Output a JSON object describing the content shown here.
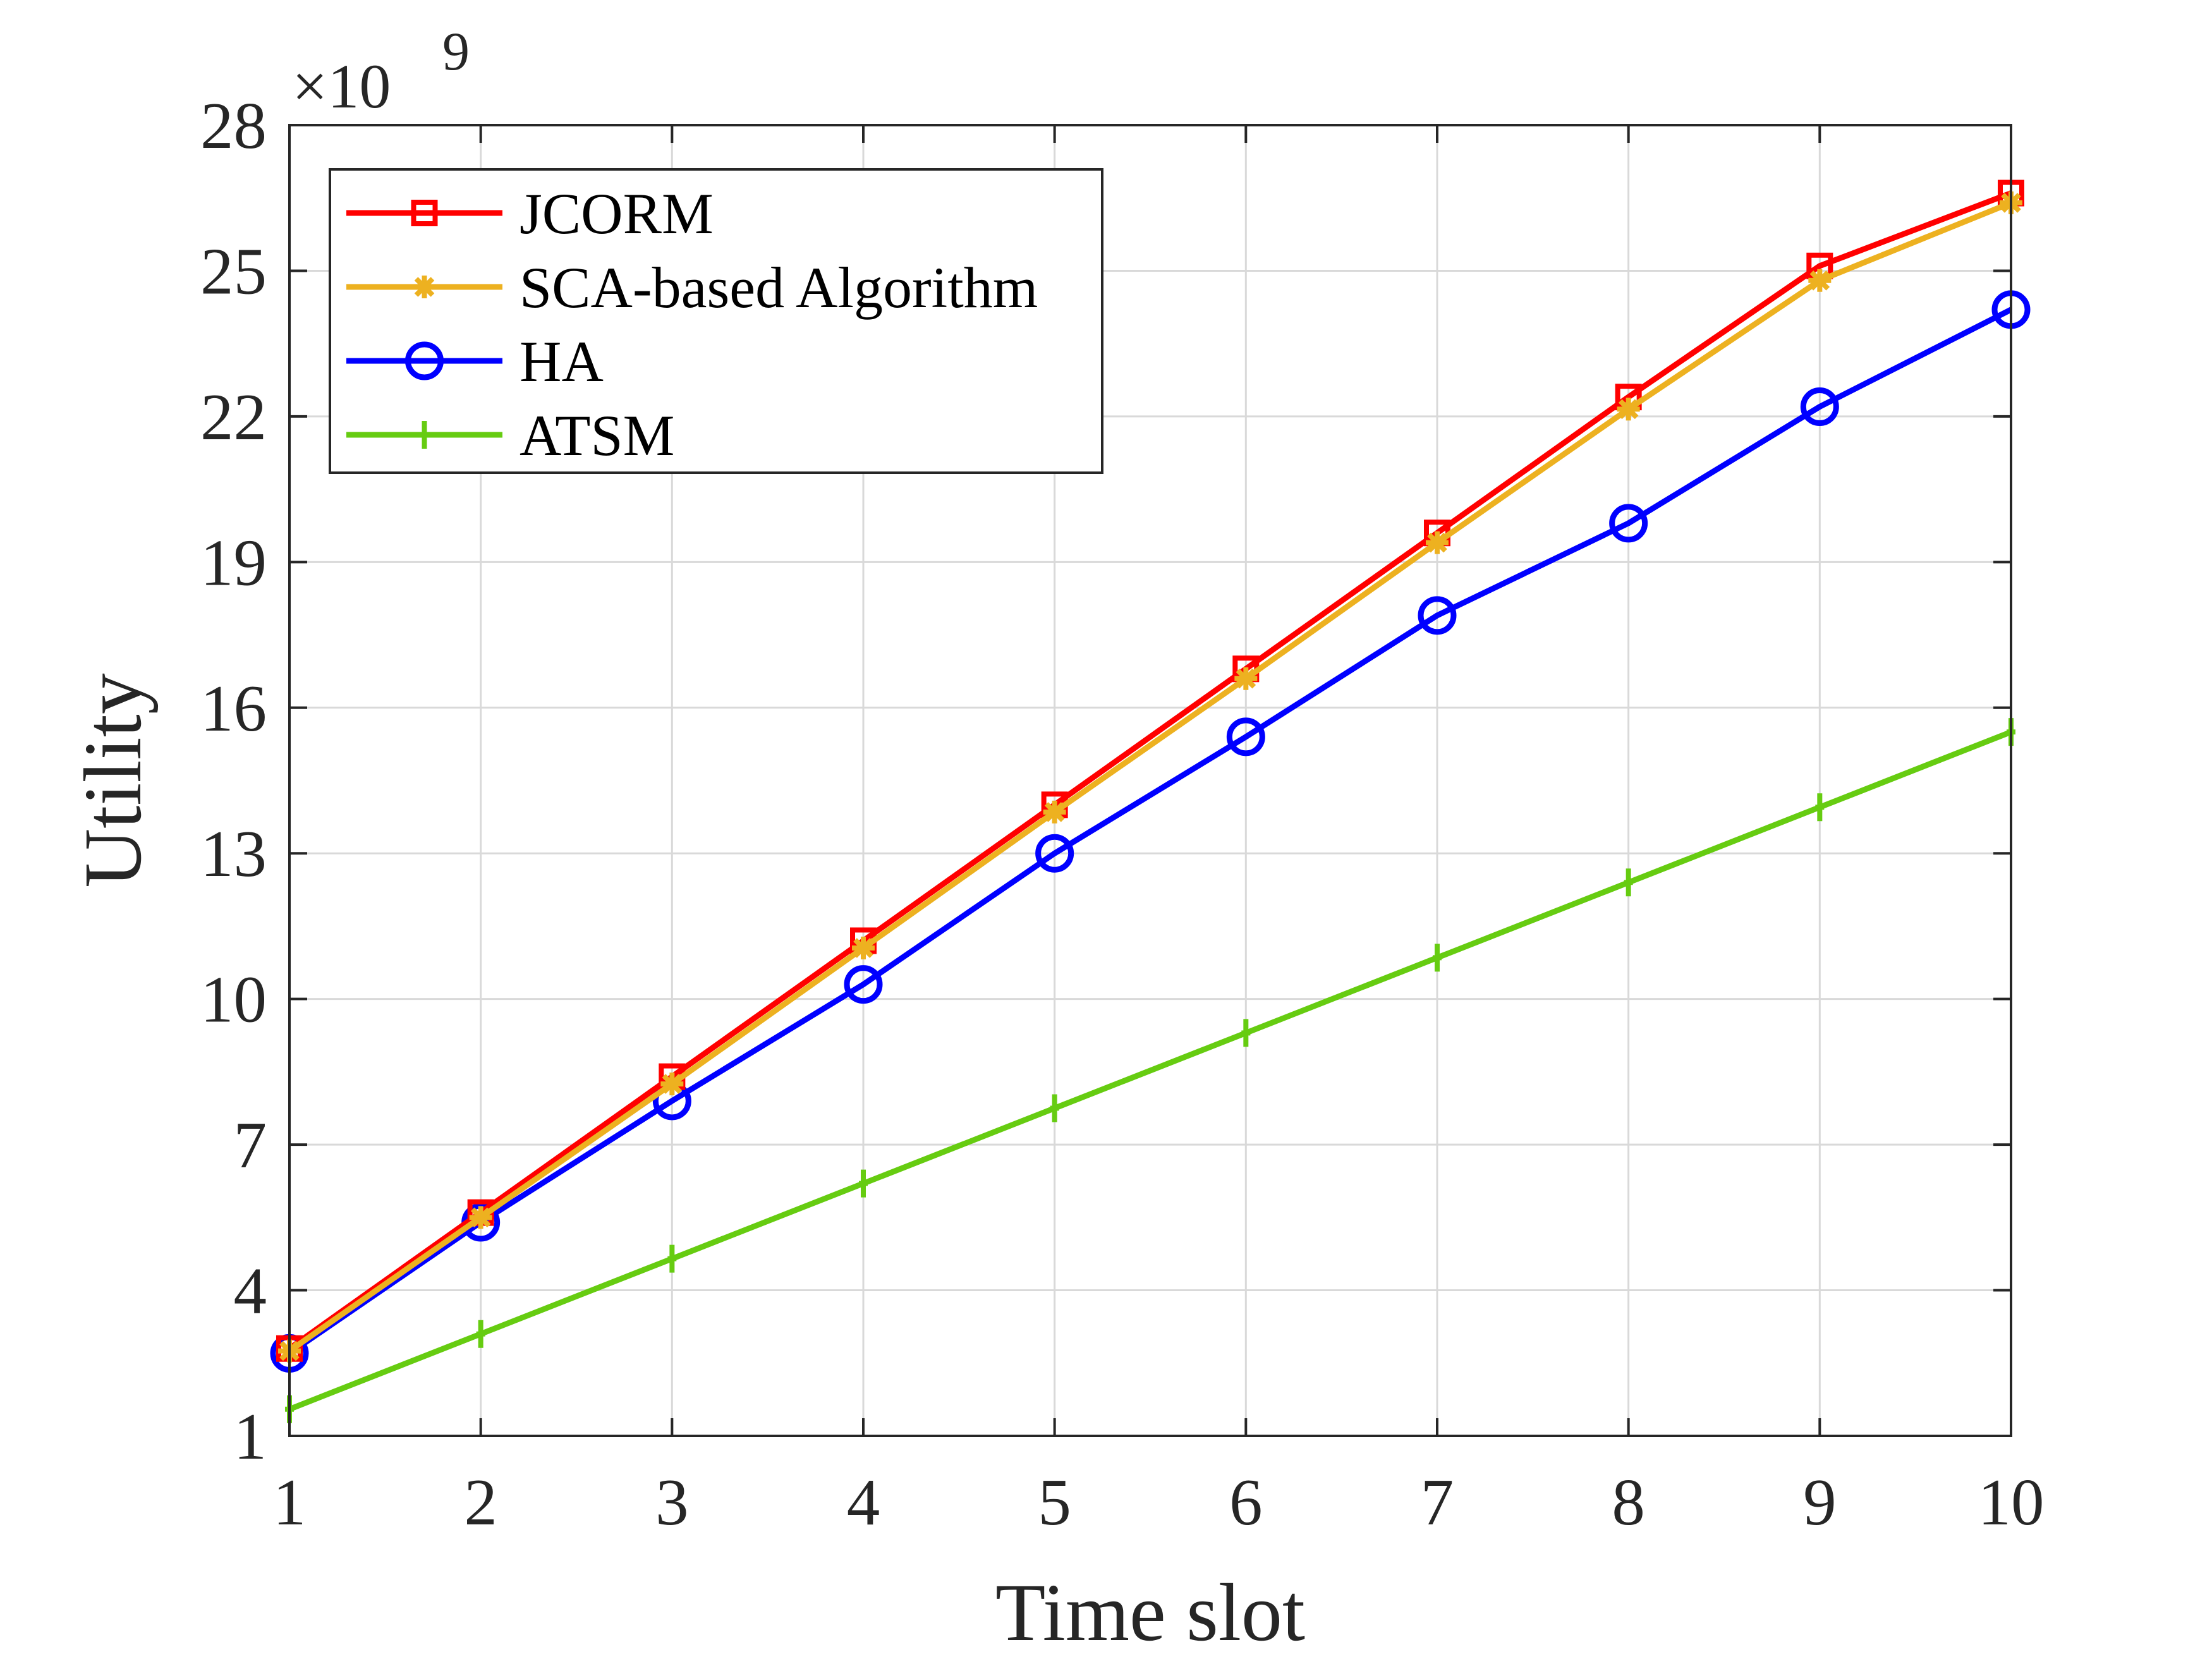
{
  "chart_data": {
    "type": "line",
    "title": "",
    "xlabel": "Time slot",
    "ylabel": "Utility",
    "x": [
      1,
      2,
      3,
      4,
      5,
      6,
      7,
      8,
      9,
      10
    ],
    "xticks": [
      "1",
      "2",
      "3",
      "4",
      "5",
      "6",
      "7",
      "8",
      "9",
      "10"
    ],
    "yticks": [
      "1",
      "4",
      "7",
      "10",
      "13",
      "16",
      "19",
      "22",
      "25",
      "28"
    ],
    "ytick_values": [
      1,
      4,
      7,
      10,
      13,
      16,
      19,
      22,
      25,
      28
    ],
    "xlim": [
      1,
      10
    ],
    "ylim": [
      1,
      28
    ],
    "y_scale_base": "×10",
    "y_scale_exponent": "9",
    "grid": true,
    "legend_position": "top-left",
    "series": [
      {
        "name": "JCORM",
        "color": "#ff0000",
        "marker": "square",
        "values": [
          2.8,
          5.6,
          8.4,
          11.2,
          14.0,
          16.8,
          19.6,
          22.4,
          25.1,
          26.6
        ]
      },
      {
        "name": "SCA-based Algorithm",
        "color": "#edb120",
        "marker": "asterisk",
        "values": [
          2.75,
          5.5,
          8.25,
          11.05,
          13.85,
          16.6,
          19.4,
          22.15,
          24.8,
          26.4
        ]
      },
      {
        "name": "HA",
        "color": "#0000ff",
        "marker": "circle",
        "values": [
          2.7,
          5.4,
          7.9,
          10.3,
          13.0,
          15.4,
          17.9,
          19.8,
          22.2,
          24.2
        ]
      },
      {
        "name": "ATSM",
        "color": "#66cc11",
        "marker": "plus",
        "values": [
          1.55,
          3.1,
          4.65,
          6.2,
          7.75,
          9.3,
          10.85,
          12.4,
          13.95,
          15.5
        ]
      }
    ]
  }
}
